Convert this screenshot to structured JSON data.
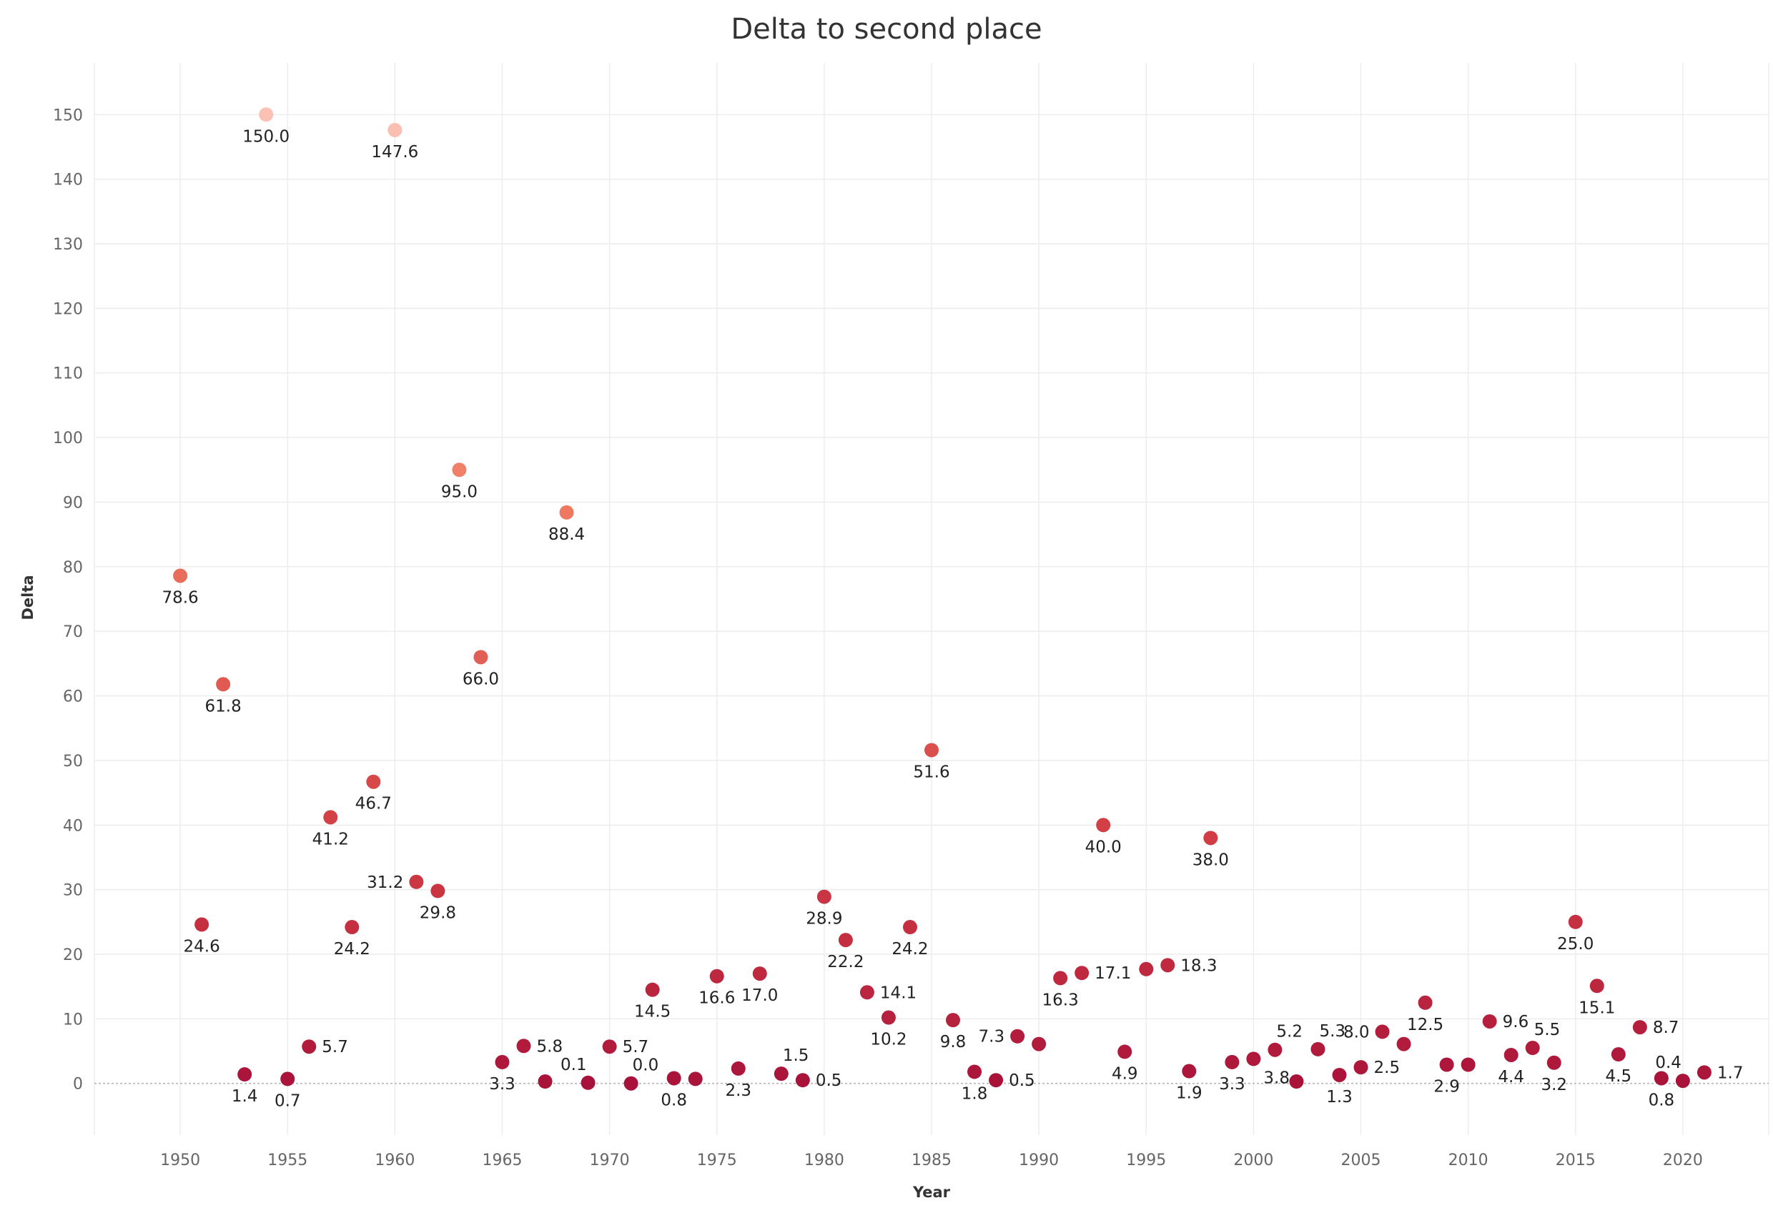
{
  "chart_data": {
    "type": "scatter",
    "title": "Delta to second place",
    "xlabel": "Year",
    "ylabel": "Delta",
    "xlim": [
      1946,
      2024
    ],
    "ylim": [
      -8,
      158
    ],
    "x_ticks": [
      1950,
      1955,
      1960,
      1965,
      1970,
      1975,
      1980,
      1985,
      1990,
      1995,
      2000,
      2005,
      2010,
      2015,
      2020
    ],
    "y_ticks": [
      0,
      10,
      20,
      30,
      40,
      50,
      60,
      70,
      80,
      90,
      100,
      110,
      120,
      130,
      140,
      150
    ],
    "grid": true,
    "zero_line": "dotted",
    "color_encoding": "sequential by delta",
    "color_scale": [
      "#a8123a",
      "#d13d44",
      "#f07a62",
      "#fbc2b4"
    ],
    "points": [
      {
        "x": 1950,
        "y": 78.6,
        "label": "78.6",
        "pos": "below"
      },
      {
        "x": 1951,
        "y": 24.6,
        "label": "24.6",
        "pos": "below"
      },
      {
        "x": 1952,
        "y": 61.8,
        "label": "61.8",
        "pos": "below"
      },
      {
        "x": 1953,
        "y": 1.4,
        "label": "1.4",
        "pos": "below"
      },
      {
        "x": 1954,
        "y": 150.0,
        "label": "150.0",
        "pos": "below"
      },
      {
        "x": 1955,
        "y": 0.7,
        "label": "0.7",
        "pos": "below"
      },
      {
        "x": 1956,
        "y": 5.7,
        "label": "5.7",
        "pos": "right"
      },
      {
        "x": 1957,
        "y": 41.2,
        "label": "41.2",
        "pos": "below"
      },
      {
        "x": 1958,
        "y": 24.2,
        "label": "24.2",
        "pos": "below"
      },
      {
        "x": 1959,
        "y": 46.7,
        "label": "46.7",
        "pos": "below"
      },
      {
        "x": 1960,
        "y": 147.6,
        "label": "147.6",
        "pos": "below"
      },
      {
        "x": 1961,
        "y": 31.2,
        "label": "31.2",
        "pos": "left"
      },
      {
        "x": 1962,
        "y": 29.8,
        "label": "29.8",
        "pos": "below"
      },
      {
        "x": 1963,
        "y": 95.0,
        "label": "95.0",
        "pos": "below"
      },
      {
        "x": 1964,
        "y": 66.0,
        "label": "66.0",
        "pos": "below"
      },
      {
        "x": 1965,
        "y": 3.3,
        "label": "3.3",
        "pos": "below"
      },
      {
        "x": 1966,
        "y": 5.8,
        "label": "5.8",
        "pos": "right"
      },
      {
        "x": 1967,
        "y": 0.3,
        "label": "",
        "pos": "none"
      },
      {
        "x": 1968,
        "y": 88.4,
        "label": "88.4",
        "pos": "below"
      },
      {
        "x": 1969,
        "y": 0.1,
        "label": "0.1",
        "pos": "above-left"
      },
      {
        "x": 1970,
        "y": 5.7,
        "label": "5.7",
        "pos": "right"
      },
      {
        "x": 1971,
        "y": 0.0,
        "label": "0.0",
        "pos": "above-right"
      },
      {
        "x": 1972,
        "y": 14.5,
        "label": "14.5",
        "pos": "below"
      },
      {
        "x": 1973,
        "y": 0.8,
        "label": "0.8",
        "pos": "below"
      },
      {
        "x": 1974,
        "y": 0.7,
        "label": "",
        "pos": "none"
      },
      {
        "x": 1975,
        "y": 16.6,
        "label": "16.6",
        "pos": "below"
      },
      {
        "x": 1976,
        "y": 2.3,
        "label": "2.3",
        "pos": "below"
      },
      {
        "x": 1977,
        "y": 17.0,
        "label": "17.0",
        "pos": "below"
      },
      {
        "x": 1978,
        "y": 1.5,
        "label": "1.5",
        "pos": "above-right"
      },
      {
        "x": 1979,
        "y": 0.5,
        "label": "0.5",
        "pos": "right"
      },
      {
        "x": 1980,
        "y": 28.9,
        "label": "28.9",
        "pos": "below"
      },
      {
        "x": 1981,
        "y": 22.2,
        "label": "22.2",
        "pos": "below"
      },
      {
        "x": 1982,
        "y": 14.1,
        "label": "14.1",
        "pos": "right"
      },
      {
        "x": 1983,
        "y": 10.2,
        "label": "10.2",
        "pos": "below"
      },
      {
        "x": 1984,
        "y": 24.2,
        "label": "24.2",
        "pos": "below"
      },
      {
        "x": 1985,
        "y": 51.6,
        "label": "51.6",
        "pos": "below"
      },
      {
        "x": 1986,
        "y": 9.8,
        "label": "9.8",
        "pos": "below"
      },
      {
        "x": 1987,
        "y": 1.8,
        "label": "1.8",
        "pos": "below"
      },
      {
        "x": 1988,
        "y": 0.5,
        "label": "0.5",
        "pos": "right"
      },
      {
        "x": 1989,
        "y": 7.3,
        "label": "7.3",
        "pos": "left"
      },
      {
        "x": 1990,
        "y": 6.1,
        "label": "",
        "pos": "none"
      },
      {
        "x": 1991,
        "y": 16.3,
        "label": "16.3",
        "pos": "below"
      },
      {
        "x": 1992,
        "y": 17.1,
        "label": "17.1",
        "pos": "right"
      },
      {
        "x": 1993,
        "y": 40.0,
        "label": "40.0",
        "pos": "below"
      },
      {
        "x": 1994,
        "y": 4.9,
        "label": "4.9",
        "pos": "below"
      },
      {
        "x": 1995,
        "y": 17.7,
        "label": "",
        "pos": "none"
      },
      {
        "x": 1996,
        "y": 18.3,
        "label": "18.3",
        "pos": "right"
      },
      {
        "x": 1997,
        "y": 1.9,
        "label": "1.9",
        "pos": "below"
      },
      {
        "x": 1998,
        "y": 38.0,
        "label": "38.0",
        "pos": "below"
      },
      {
        "x": 1999,
        "y": 3.3,
        "label": "3.3",
        "pos": "below"
      },
      {
        "x": 2000,
        "y": 3.8,
        "label": "3.8",
        "pos": "below-right"
      },
      {
        "x": 2001,
        "y": 5.2,
        "label": "5.2",
        "pos": "above-right"
      },
      {
        "x": 2002,
        "y": 0.3,
        "label": "",
        "pos": "none"
      },
      {
        "x": 2003,
        "y": 5.3,
        "label": "5.3",
        "pos": "above-right"
      },
      {
        "x": 2004,
        "y": 1.3,
        "label": "1.3",
        "pos": "below"
      },
      {
        "x": 2005,
        "y": 2.5,
        "label": "2.5",
        "pos": "right"
      },
      {
        "x": 2006,
        "y": 8.0,
        "label": "8.0",
        "pos": "left"
      },
      {
        "x": 2007,
        "y": 6.1,
        "label": "",
        "pos": "none"
      },
      {
        "x": 2008,
        "y": 12.5,
        "label": "12.5",
        "pos": "below"
      },
      {
        "x": 2009,
        "y": 2.9,
        "label": "2.9",
        "pos": "below"
      },
      {
        "x": 2010,
        "y": 2.9,
        "label": "",
        "pos": "none"
      },
      {
        "x": 2011,
        "y": 9.6,
        "label": "9.6",
        "pos": "right"
      },
      {
        "x": 2012,
        "y": 4.4,
        "label": "4.4",
        "pos": "below"
      },
      {
        "x": 2013,
        "y": 5.5,
        "label": "5.5",
        "pos": "above-right"
      },
      {
        "x": 2014,
        "y": 3.2,
        "label": "3.2",
        "pos": "below"
      },
      {
        "x": 2015,
        "y": 25.0,
        "label": "25.0",
        "pos": "below"
      },
      {
        "x": 2016,
        "y": 15.1,
        "label": "15.1",
        "pos": "below"
      },
      {
        "x": 2017,
        "y": 4.5,
        "label": "4.5",
        "pos": "below"
      },
      {
        "x": 2018,
        "y": 8.7,
        "label": "8.7",
        "pos": "right"
      },
      {
        "x": 2019,
        "y": 0.8,
        "label": "0.8",
        "pos": "below"
      },
      {
        "x": 2020,
        "y": 0.4,
        "label": "0.4",
        "pos": "above-left"
      },
      {
        "x": 2021,
        "y": 1.7,
        "label": "1.7",
        "pos": "right"
      }
    ]
  }
}
